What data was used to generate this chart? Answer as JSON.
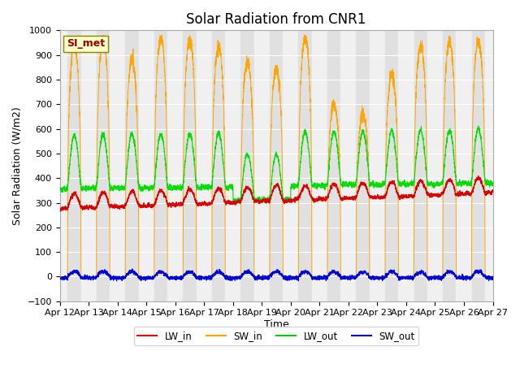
{
  "title": "Solar Radiation from CNR1",
  "xlabel": "Time",
  "ylabel": "Solar Radiation (W/m2)",
  "ylim": [
    -100,
    1000
  ],
  "x_tick_labels": [
    "Apr 12",
    "Apr 13",
    "Apr 14",
    "Apr 15",
    "Apr 16",
    "Apr 17",
    "Apr 18",
    "Apr 19",
    "Apr 20",
    "Apr 21",
    "Apr 22",
    "Apr 23",
    "Apr 24",
    "Apr 25",
    "Apr 26",
    "Apr 27"
  ],
  "legend_labels": [
    "LW_in",
    "SW_in",
    "LW_out",
    "SW_out"
  ],
  "legend_colors": [
    "#ff0000",
    "#ffa500",
    "#00cc00",
    "#0000cc"
  ],
  "annotation_text": "SI_met",
  "annotation_color": "#990000",
  "annotation_bg": "#ffffcc",
  "line_colors": {
    "LW_in": "#dd0000",
    "SW_in": "#ffa500",
    "LW_out": "#00dd00",
    "SW_out": "#0000dd"
  },
  "bg_day": "#e8e8e8",
  "bg_night": "#f5f5f5",
  "grid_color": "#ffffff",
  "title_fontsize": 12,
  "axis_fontsize": 9,
  "tick_fontsize": 8
}
